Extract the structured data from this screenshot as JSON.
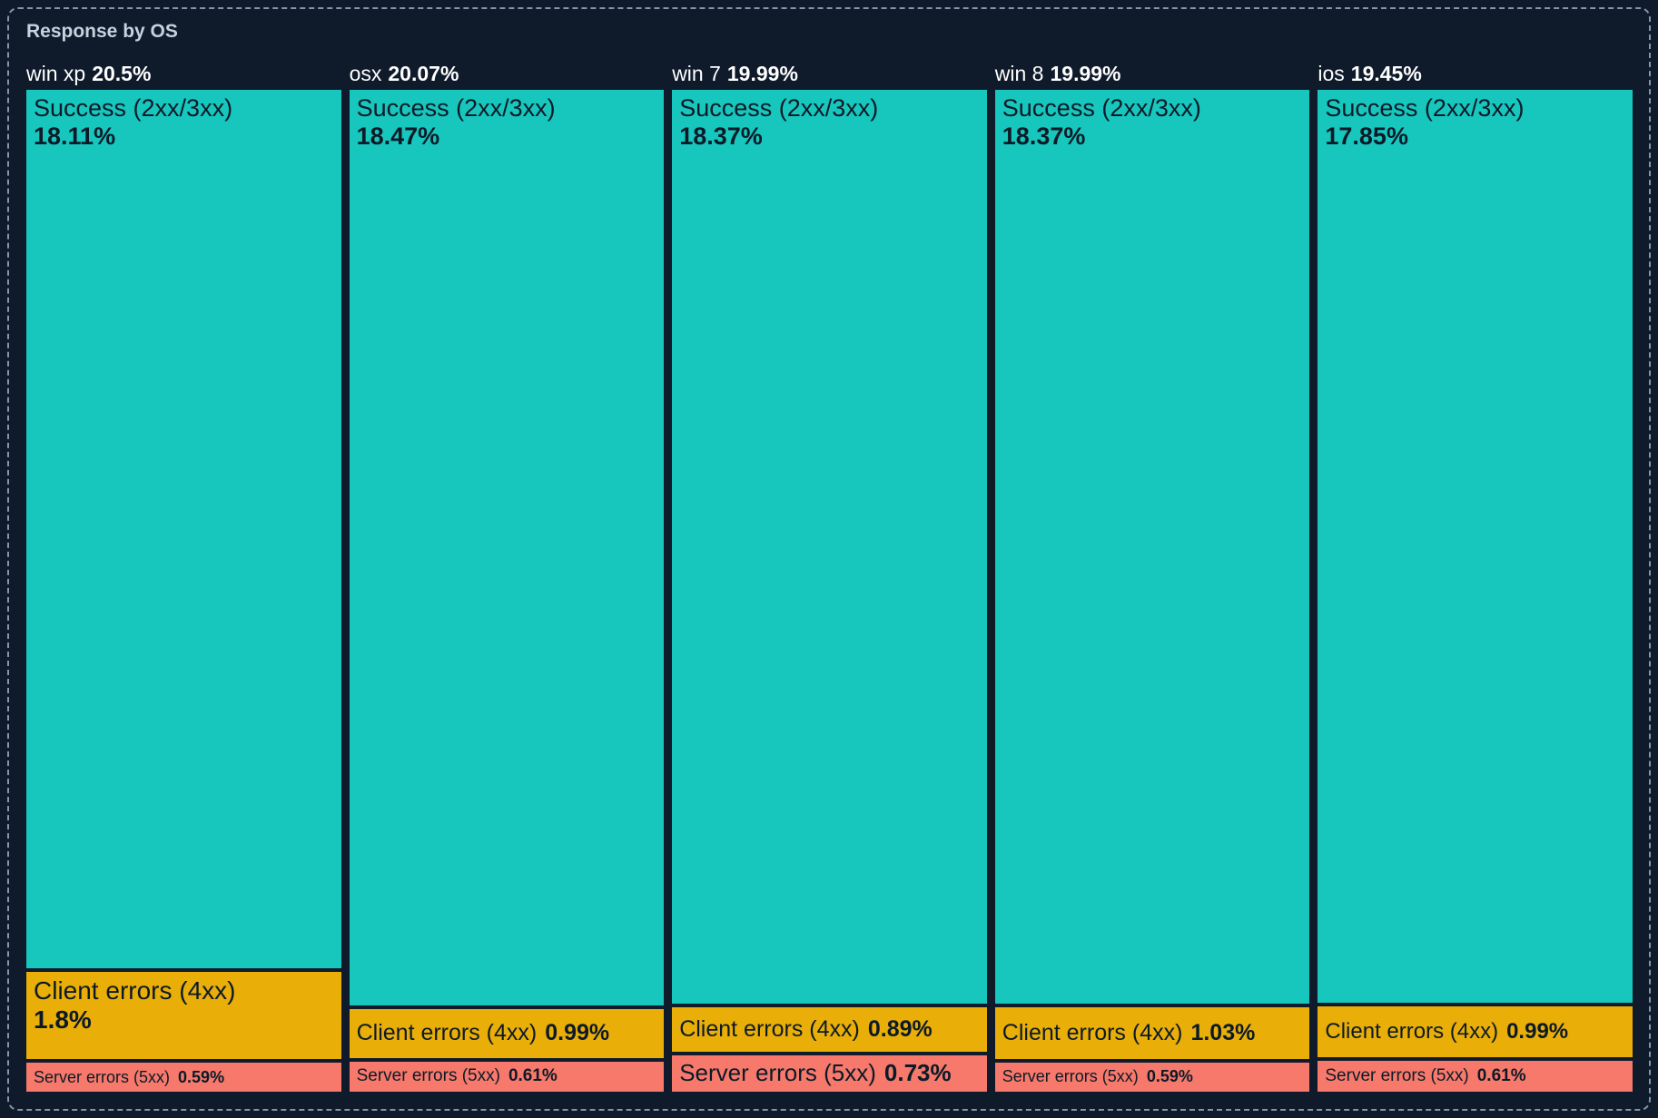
{
  "panel": {
    "title": "Response by OS"
  },
  "colors": {
    "bg": "#0f1a2b",
    "border": "#8496ac",
    "title": "#c8d1dd",
    "header": "#ffffff",
    "darktext": "#0c1a28",
    "success": "#17c6bc",
    "client": "#e9ae07",
    "server": "#f6796b"
  },
  "chart_data": {
    "type": "treemap",
    "title": "Response by OS",
    "legend_position": "none",
    "series_labels": [
      "Success (2xx/3xx)",
      "Client errors (4xx)",
      "Server errors (5xx)"
    ],
    "columns": [
      {
        "os": "win xp",
        "total": "20.5%",
        "total_pct": 20.5,
        "segments": [
          {
            "name": "Success (2xx/3xx)",
            "value": "18.11%",
            "pct": 18.11
          },
          {
            "name": "Client errors (4xx)",
            "value": "1.8%",
            "pct": 1.8
          },
          {
            "name": "Server errors (5xx)",
            "value": "0.59%",
            "pct": 0.59
          }
        ]
      },
      {
        "os": "osx",
        "total": "20.07%",
        "total_pct": 20.07,
        "segments": [
          {
            "name": "Success (2xx/3xx)",
            "value": "18.47%",
            "pct": 18.47
          },
          {
            "name": "Client errors (4xx)",
            "value": "0.99%",
            "pct": 0.99
          },
          {
            "name": "Server errors (5xx)",
            "value": "0.61%",
            "pct": 0.61
          }
        ]
      },
      {
        "os": "win 7",
        "total": "19.99%",
        "total_pct": 19.99,
        "segments": [
          {
            "name": "Success (2xx/3xx)",
            "value": "18.37%",
            "pct": 18.37
          },
          {
            "name": "Client errors (4xx)",
            "value": "0.89%",
            "pct": 0.89
          },
          {
            "name": "Server errors (5xx)",
            "value": "0.73%",
            "pct": 0.73
          }
        ]
      },
      {
        "os": "win 8",
        "total": "19.99%",
        "total_pct": 19.99,
        "segments": [
          {
            "name": "Success (2xx/3xx)",
            "value": "18.37%",
            "pct": 18.37
          },
          {
            "name": "Client errors (4xx)",
            "value": "1.03%",
            "pct": 1.03
          },
          {
            "name": "Server errors (5xx)",
            "value": "0.59%",
            "pct": 0.59
          }
        ]
      },
      {
        "os": "ios",
        "total": "19.45%",
        "total_pct": 19.45,
        "segments": [
          {
            "name": "Success (2xx/3xx)",
            "value": "17.85%",
            "pct": 17.85
          },
          {
            "name": "Client errors (4xx)",
            "value": "0.99%",
            "pct": 0.99
          },
          {
            "name": "Server errors (5xx)",
            "value": "0.61%",
            "pct": 0.61
          }
        ]
      }
    ]
  }
}
